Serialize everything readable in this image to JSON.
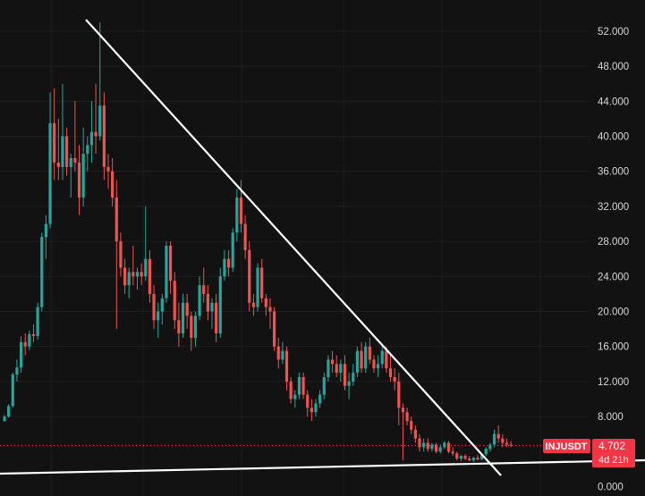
{
  "symbol": "INJUSDT",
  "last_price": "4.702",
  "countdown": "4d 21h",
  "colors": {
    "background": "#121212",
    "grid": "#1f1f1f",
    "up": "#26a69a",
    "down": "#ef5350",
    "trendline": "#ffffff",
    "badge": "#f23645"
  },
  "chart_data": {
    "type": "candlestick",
    "y_axis": {
      "side": "right",
      "ticks": [
        "52.000",
        "48.000",
        "44.000",
        "40.000",
        "36.000",
        "32.000",
        "28.000",
        "24.000",
        "20.000",
        "16.000",
        "12.000",
        "8.000",
        "0.000"
      ],
      "ylim": [
        0,
        54
      ]
    },
    "grid": true,
    "last_price": 4.702,
    "price_line": "dotted",
    "candles": [
      [
        7.5,
        8.2,
        7.4,
        8.0
      ],
      [
        8.0,
        9.4,
        7.9,
        9.2
      ],
      [
        9.2,
        13.0,
        9.0,
        12.8
      ],
      [
        12.8,
        14.5,
        12.0,
        13.6
      ],
      [
        13.6,
        17.2,
        13.0,
        16.5
      ],
      [
        16.5,
        17.5,
        15.0,
        16.0
      ],
      [
        16.0,
        17.8,
        15.6,
        17.4
      ],
      [
        17.4,
        18.5,
        16.5,
        17.2
      ],
      [
        17.2,
        21.0,
        16.8,
        20.5
      ],
      [
        20.5,
        29.0,
        20.0,
        28.5
      ],
      [
        28.5,
        31.0,
        26.0,
        30.0
      ],
      [
        30.0,
        45.0,
        29.5,
        41.5
      ],
      [
        41.5,
        45.5,
        35.0,
        37.0
      ],
      [
        37.0,
        42.0,
        35.0,
        36.5
      ],
      [
        36.5,
        46.0,
        35.0,
        40.0
      ],
      [
        40.0,
        41.0,
        35.5,
        36.5
      ],
      [
        36.5,
        38.0,
        33.0,
        37.5
      ],
      [
        37.5,
        44.0,
        36.0,
        37.0
      ],
      [
        37.0,
        39.0,
        31.0,
        33.0
      ],
      [
        33.0,
        41.0,
        32.0,
        38.0
      ],
      [
        38.0,
        40.0,
        36.0,
        39.0
      ],
      [
        39.0,
        44.0,
        37.0,
        40.5
      ],
      [
        40.5,
        46.0,
        38.0,
        40.0
      ],
      [
        40.0,
        53.0,
        39.5,
        43.5
      ],
      [
        43.5,
        45.0,
        35.0,
        36.5
      ],
      [
        36.5,
        38.0,
        34.0,
        36.0
      ],
      [
        36.0,
        37.5,
        32.0,
        33.0
      ],
      [
        33.0,
        35.0,
        18.0,
        28.0
      ],
      [
        28.0,
        29.0,
        24.0,
        25.0
      ],
      [
        25.0,
        26.0,
        22.0,
        23.0
      ],
      [
        23.0,
        25.0,
        21.5,
        24.5
      ],
      [
        24.5,
        27.5,
        23.0,
        24.0
      ],
      [
        24.0,
        25.0,
        22.5,
        24.5
      ],
      [
        24.5,
        25.5,
        23.0,
        24.0
      ],
      [
        24.0,
        32.0,
        23.5,
        26.0
      ],
      [
        26.0,
        27.0,
        21.0,
        22.0
      ],
      [
        22.0,
        23.0,
        18.0,
        19.0
      ],
      [
        19.0,
        21.0,
        17.0,
        20.0
      ],
      [
        20.0,
        22.0,
        18.5,
        21.5
      ],
      [
        21.5,
        28.0,
        21.0,
        27.5
      ],
      [
        27.5,
        28.0,
        22.0,
        23.5
      ],
      [
        23.5,
        24.5,
        18.0,
        19.0
      ],
      [
        19.0,
        21.0,
        16.0,
        17.5
      ],
      [
        17.5,
        22.0,
        17.0,
        21.0
      ],
      [
        21.0,
        22.0,
        18.0,
        19.5
      ],
      [
        19.5,
        20.0,
        15.5,
        17.0
      ],
      [
        17.0,
        20.0,
        16.0,
        19.5
      ],
      [
        19.5,
        24.0,
        19.0,
        23.0
      ],
      [
        23.0,
        25.0,
        21.0,
        22.0
      ],
      [
        22.0,
        23.0,
        19.0,
        20.0
      ],
      [
        20.0,
        21.5,
        18.0,
        21.0
      ],
      [
        21.0,
        22.0,
        16.5,
        17.5
      ],
      [
        17.5,
        25.0,
        17.0,
        24.0
      ],
      [
        24.0,
        27.0,
        23.5,
        26.0
      ],
      [
        26.0,
        27.0,
        24.0,
        25.0
      ],
      [
        25.0,
        29.5,
        24.5,
        29.0
      ],
      [
        29.0,
        34.0,
        28.0,
        33.0
      ],
      [
        33.0,
        35.0,
        29.0,
        30.0
      ],
      [
        30.0,
        31.0,
        26.0,
        27.0
      ],
      [
        27.0,
        28.0,
        20.0,
        21.0
      ],
      [
        21.0,
        22.0,
        19.5,
        20.5
      ],
      [
        20.5,
        25.5,
        20.0,
        25.0
      ],
      [
        25.0,
        26.0,
        21.0,
        21.5
      ],
      [
        21.5,
        22.0,
        19.5,
        20.5
      ],
      [
        20.5,
        21.5,
        18.0,
        20.0
      ],
      [
        20.0,
        20.5,
        15.5,
        16.0
      ],
      [
        16.0,
        17.0,
        13.5,
        14.5
      ],
      [
        14.5,
        16.5,
        14.0,
        15.5
      ],
      [
        15.5,
        16.0,
        11.0,
        12.0
      ],
      [
        12.0,
        12.5,
        9.5,
        10.0
      ],
      [
        10.0,
        11.0,
        9.0,
        10.5
      ],
      [
        10.5,
        13.0,
        10.0,
        12.5
      ],
      [
        12.5,
        13.0,
        10.0,
        10.5
      ],
      [
        10.5,
        11.0,
        8.0,
        9.0
      ],
      [
        9.0,
        10.0,
        7.5,
        8.5
      ],
      [
        8.5,
        10.0,
        8.0,
        9.5
      ],
      [
        9.5,
        11.0,
        9.0,
        10.5
      ],
      [
        10.5,
        13.0,
        10.0,
        12.5
      ],
      [
        12.5,
        15.0,
        12.0,
        14.5
      ],
      [
        14.5,
        15.5,
        13.0,
        14.0
      ],
      [
        14.0,
        15.0,
        12.5,
        13.0
      ],
      [
        13.0,
        14.5,
        12.0,
        14.0
      ],
      [
        14.0,
        15.0,
        11.0,
        11.5
      ],
      [
        11.5,
        13.0,
        10.0,
        12.0
      ],
      [
        12.0,
        14.0,
        11.5,
        13.0
      ],
      [
        13.0,
        16.0,
        12.5,
        15.5
      ],
      [
        15.5,
        16.5,
        13.0,
        13.5
      ],
      [
        13.5,
        16.5,
        13.0,
        16.0
      ],
      [
        16.0,
        17.0,
        14.0,
        14.5
      ],
      [
        14.5,
        15.0,
        13.0,
        13.5
      ],
      [
        13.5,
        15.0,
        12.5,
        14.0
      ],
      [
        14.0,
        16.0,
        13.5,
        15.5
      ],
      [
        15.5,
        16.0,
        13.0,
        13.5
      ],
      [
        13.5,
        15.0,
        12.0,
        12.5
      ],
      [
        12.5,
        13.5,
        11.0,
        12.0
      ],
      [
        12.0,
        13.0,
        7.0,
        9.0
      ],
      [
        9.0,
        9.5,
        3.0,
        8.5
      ],
      [
        8.5,
        9.0,
        7.0,
        7.5
      ],
      [
        7.5,
        8.0,
        6.0,
        6.5
      ],
      [
        6.5,
        7.0,
        5.0,
        5.5
      ],
      [
        5.5,
        6.0,
        4.0,
        4.5
      ],
      [
        4.5,
        5.5,
        4.0,
        5.0
      ],
      [
        5.0,
        5.5,
        4.0,
        4.3
      ],
      [
        4.3,
        5.0,
        4.0,
        4.8
      ],
      [
        4.8,
        5.0,
        3.8,
        4.0
      ],
      [
        4.0,
        4.8,
        3.8,
        4.5
      ],
      [
        4.5,
        5.2,
        4.3,
        5.0
      ],
      [
        5.0,
        5.2,
        3.8,
        4.0
      ],
      [
        4.0,
        4.5,
        3.5,
        3.8
      ],
      [
        3.8,
        4.0,
        3.0,
        3.2
      ],
      [
        3.2,
        3.6,
        2.9,
        3.5
      ],
      [
        3.5,
        3.7,
        3.0,
        3.2
      ],
      [
        3.2,
        3.5,
        2.9,
        3.0
      ],
      [
        3.0,
        3.4,
        2.8,
        3.3
      ],
      [
        3.3,
        3.6,
        3.0,
        3.1
      ],
      [
        3.1,
        3.8,
        3.0,
        3.7
      ],
      [
        3.7,
        4.5,
        3.5,
        4.3
      ],
      [
        4.3,
        5.0,
        4.0,
        4.8
      ],
      [
        4.8,
        6.5,
        4.5,
        6.0
      ],
      [
        6.0,
        7.0,
        5.0,
        5.5
      ],
      [
        5.5,
        6.0,
        4.5,
        5.0
      ],
      [
        5.0,
        5.5,
        4.5,
        4.8
      ],
      [
        4.8,
        5.2,
        4.5,
        4.702
      ]
    ]
  }
}
